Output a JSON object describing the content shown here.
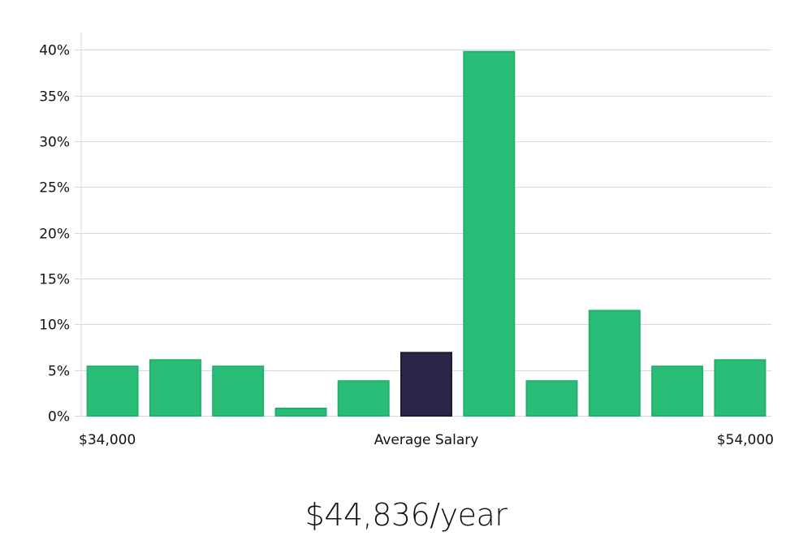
{
  "chart_data": {
    "type": "bar",
    "title": "",
    "xlabel": "Average Salary",
    "ylabel": "",
    "x_range_labels": {
      "min": "$34,000",
      "max": "$54,000"
    },
    "yticks": [
      "0%",
      "5%",
      "10%",
      "15%",
      "20%",
      "25%",
      "30%",
      "35%",
      "40%"
    ],
    "ylim": [
      0,
      41.9
    ],
    "values": [
      5.4,
      6.1,
      5.4,
      0.8,
      3.8,
      6.9,
      39.8,
      3.8,
      11.5,
      5.4,
      6.1
    ],
    "highlight_index": 5,
    "bar_color": "#2abd78",
    "bar_border_color": "#23b06d",
    "highlight_color": "#292647",
    "highlight_border_color": "#1c1a38",
    "grid": true,
    "legend": "none"
  },
  "summary": {
    "salary_text": "$44,836/year"
  }
}
